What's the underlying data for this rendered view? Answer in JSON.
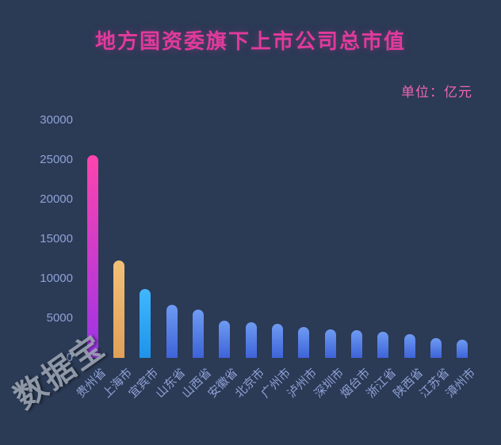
{
  "title": "地方国资委旗下上市公司总市值",
  "unit_label": "单位：亿元",
  "watermark": "数据宝",
  "colors": {
    "background": "#2b3a55",
    "title": "#e13a9c",
    "unit_label": "#ee66b4",
    "axis_text": "#8fa2d6",
    "watermark": "#a2abba"
  },
  "chart_data": {
    "type": "bar",
    "title": "地方国资委旗下上市公司总市值",
    "unit": "亿元",
    "categories": [
      "贵州省",
      "上海市",
      "宜宾市",
      "山东省",
      "山西省",
      "安徽省",
      "北京市",
      "广州市",
      "泸州市",
      "深圳市",
      "烟台市",
      "浙江省",
      "陕西省",
      "江苏省",
      "漳州市"
    ],
    "values": [
      25600,
      12300,
      8700,
      6700,
      6100,
      4700,
      4500,
      4300,
      3900,
      3600,
      3500,
      3300,
      3000,
      2500,
      2300
    ],
    "xlabel": "",
    "ylabel": "亿元",
    "ylim": [
      0,
      30000
    ],
    "yticks": [
      0,
      5000,
      10000,
      15000,
      20000,
      25000,
      30000
    ],
    "grid": false,
    "legend": false,
    "bar_styles": [
      {
        "index": 0,
        "top": "#ff44ae",
        "bottom": "#9b33e8"
      },
      {
        "index": 1,
        "top": "#f2c078",
        "bottom": "#e0a058"
      },
      {
        "index": 2,
        "top": "#41b7ff",
        "bottom": "#1f93ea"
      }
    ],
    "default_bar": {
      "top": "#6e9bf2",
      "bottom": "#3e63d8"
    }
  }
}
